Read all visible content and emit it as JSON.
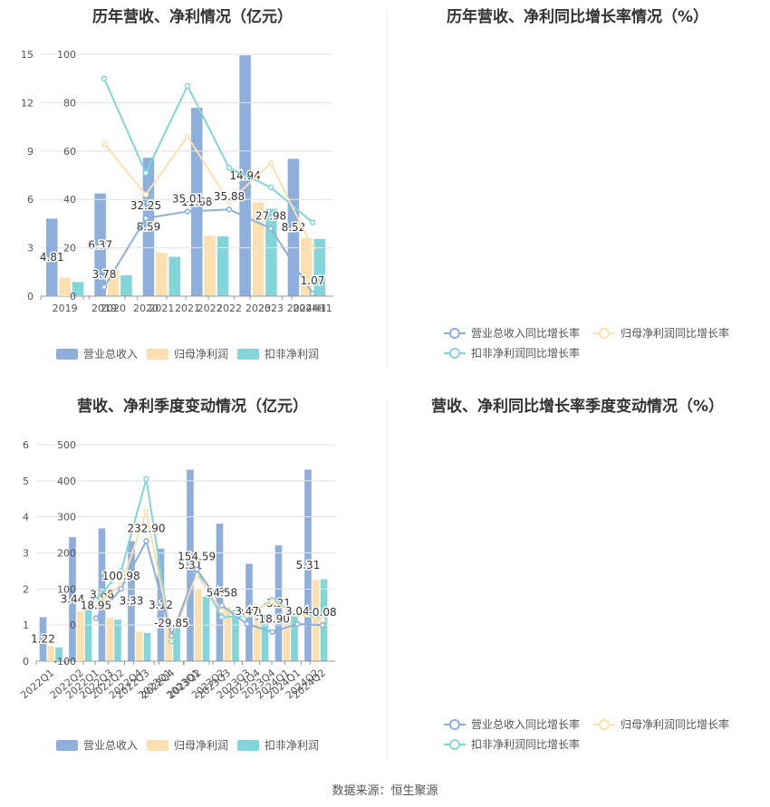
{
  "colors": {
    "revenue": "#8eaedc",
    "net_profit": "#fde0ad",
    "deducted_profit": "#82d6d9",
    "rev_line": "#8eaedc",
    "np_line": "#fde0ad",
    "dp_line": "#82d6d9",
    "grid": "#e6e6e6",
    "axis": "#999999",
    "text": "#555555"
  },
  "source": "数据来源：恒生聚源",
  "chart_data": [
    {
      "type": "bar",
      "title": "历年营收、净利情况（亿元）",
      "categories": [
        "2019",
        "2020",
        "2021",
        "2022",
        "2023",
        "2024H1"
      ],
      "ylim": [
        0,
        15
      ],
      "yticks": [
        0,
        3,
        6,
        9,
        12,
        15
      ],
      "series": [
        {
          "name": "营业总收入",
          "values": [
            4.81,
            6.37,
            8.59,
            11.68,
            14.94,
            8.52
          ],
          "labels": [
            "4.81",
            "6.37",
            "8.59",
            "11.68",
            "14.94",
            "8.52"
          ]
        },
        {
          "name": "归母净利润",
          "values": [
            1.15,
            1.65,
            2.7,
            3.75,
            5.82,
            3.6
          ]
        },
        {
          "name": "扣非净利润",
          "values": [
            0.88,
            1.3,
            2.45,
            3.72,
            5.42,
            3.55
          ]
        }
      ],
      "legend": "bottom"
    },
    {
      "type": "line",
      "title": "历年营收、净利同比增长率情况（%）",
      "categories": [
        "2019",
        "2020",
        "2021",
        "2022",
        "2023",
        "2024H1"
      ],
      "ylim": [
        0,
        100
      ],
      "yticks": [
        0,
        20,
        40,
        60,
        80,
        100
      ],
      "series": [
        {
          "name": "营业总收入同比增长率",
          "values": [
            3.78,
            32.25,
            35.01,
            35.88,
            27.98,
            1.07
          ],
          "labels": [
            "3.78",
            "32.25",
            "35.01",
            "35.88",
            "27.98",
            "1.07"
          ]
        },
        {
          "name": "归母净利润同比增长率",
          "values": [
            63,
            42,
            66,
            39,
            55,
            20
          ]
        },
        {
          "name": "扣非净利润同比增长率",
          "values": [
            90,
            51,
            87,
            53,
            45,
            30.5
          ]
        }
      ],
      "legend": "bottom"
    },
    {
      "type": "bar",
      "title": "营收、净利季度变动情况（亿元）",
      "categories": [
        "2022Q1",
        "2022Q2",
        "2022Q3",
        "2022Q4",
        "2023Q1",
        "2023Q2",
        "2023Q3",
        "2023Q4",
        "2024Q1",
        "2024Q2"
      ],
      "ylim": [
        0,
        6
      ],
      "yticks": [
        0,
        1,
        2,
        3,
        4,
        5,
        6
      ],
      "series": [
        {
          "name": "营业总收入",
          "values": [
            1.22,
            3.44,
            3.68,
            3.33,
            3.12,
            5.31,
            3.81,
            2.7,
            3.21,
            5.31
          ],
          "labels": [
            "1.22",
            "3.44",
            "3.68",
            "3.33",
            "3.12",
            "5.31",
            "3.81",
            "2.70",
            "3.21",
            "5.31"
          ]
        },
        {
          "name": "归母净利润",
          "values": [
            0.42,
            1.38,
            1.2,
            0.82,
            1.03,
            1.99,
            1.48,
            1.27,
            1.38,
            2.25
          ]
        },
        {
          "name": "扣非净利润",
          "values": [
            0.38,
            1.45,
            1.15,
            0.78,
            0.97,
            1.79,
            1.41,
            1.3,
            1.33,
            2.27
          ]
        }
      ],
      "legend": "bottom"
    },
    {
      "type": "line",
      "title": "营收、净利同比增长率季度变动情况（%）",
      "categories": [
        "2022Q1",
        "2022Q2",
        "2022Q3",
        "2022Q4",
        "2023Q1",
        "2023Q2",
        "2023Q3",
        "2023Q4",
        "2024Q1",
        "2024Q2"
      ],
      "ylim": [
        -100,
        500
      ],
      "yticks": [
        -100,
        0,
        100,
        200,
        300,
        400,
        500
      ],
      "series": [
        {
          "name": "营业总收入同比增长率",
          "values": [
            18.95,
            100.98,
            232.9,
            -29.85,
            154.59,
            54.58,
            3.47,
            -18.9,
            3.04,
            -0.08
          ],
          "labels": [
            "18.95",
            "100.98",
            "232.90",
            "-29.85",
            "154.59",
            "54.58",
            "3.47",
            "-18.90",
            "3.04",
            "-0.08"
          ]
        },
        {
          "name": "归母净利润同比增长率",
          "values": [
            60,
            110,
            315,
            -35,
            140,
            40,
            30,
            65,
            30,
            15
          ]
        },
        {
          "name": "扣非净利润同比增长率",
          "values": [
            70,
            150,
            405,
            -45,
            150,
            22,
            25,
            70,
            30,
            20
          ]
        }
      ],
      "legend": "bottom"
    }
  ]
}
